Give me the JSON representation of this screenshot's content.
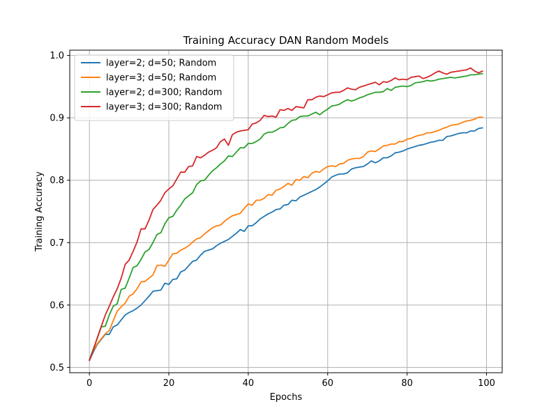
{
  "chart_data": {
    "type": "line",
    "title": "Training Accuracy DAN Random Models",
    "xlabel": "Epochs",
    "ylabel": "Training Accuracy",
    "xlim": [
      -4.95,
      103.95
    ],
    "ylim": [
      0.4915,
      1.0085
    ],
    "xticks": [
      0,
      20,
      40,
      60,
      80,
      100
    ],
    "xtick_labels": [
      "0",
      "20",
      "40",
      "60",
      "80",
      "100"
    ],
    "yticks": [
      0.5,
      0.6,
      0.7,
      0.8,
      0.9,
      1.0
    ],
    "ytick_labels": [
      "0.5",
      "0.6",
      "0.7",
      "0.8",
      "0.9",
      "1.0"
    ],
    "grid": true,
    "legend_position": "top-left",
    "x_start": 0,
    "x_step": 1,
    "series": [
      {
        "name": "layer=2; d=50; Random",
        "color": "#1f77b4",
        "values": [
          0.511,
          0.525,
          0.537,
          0.545,
          0.553,
          0.553,
          0.565,
          0.568,
          0.576,
          0.584,
          0.588,
          0.591,
          0.595,
          0.6,
          0.607,
          0.614,
          0.622,
          0.623,
          0.624,
          0.635,
          0.633,
          0.641,
          0.642,
          0.653,
          0.656,
          0.663,
          0.67,
          0.672,
          0.68,
          0.686,
          0.688,
          0.69,
          0.695,
          0.699,
          0.702,
          0.705,
          0.71,
          0.715,
          0.721,
          0.718,
          0.727,
          0.727,
          0.732,
          0.738,
          0.742,
          0.746,
          0.749,
          0.753,
          0.754,
          0.76,
          0.761,
          0.768,
          0.767,
          0.773,
          0.776,
          0.779,
          0.782,
          0.785,
          0.789,
          0.794,
          0.799,
          0.805,
          0.808,
          0.81,
          0.81,
          0.812,
          0.818,
          0.82,
          0.821,
          0.822,
          0.826,
          0.831,
          0.828,
          0.831,
          0.836,
          0.836,
          0.839,
          0.844,
          0.845,
          0.847,
          0.85,
          0.852,
          0.854,
          0.856,
          0.857,
          0.859,
          0.861,
          0.862,
          0.864,
          0.864,
          0.87,
          0.871,
          0.873,
          0.875,
          0.876,
          0.876,
          0.879,
          0.879,
          0.883,
          0.884
        ]
      },
      {
        "name": "layer=3; d=50; Random",
        "color": "#ff7f0e",
        "values": [
          0.513,
          0.527,
          0.538,
          0.546,
          0.554,
          0.559,
          0.575,
          0.59,
          0.597,
          0.603,
          0.614,
          0.618,
          0.626,
          0.637,
          0.638,
          0.643,
          0.648,
          0.663,
          0.664,
          0.662,
          0.672,
          0.682,
          0.683,
          0.688,
          0.691,
          0.695,
          0.701,
          0.706,
          0.708,
          0.714,
          0.719,
          0.724,
          0.727,
          0.728,
          0.734,
          0.739,
          0.743,
          0.745,
          0.747,
          0.755,
          0.762,
          0.76,
          0.768,
          0.768,
          0.771,
          0.777,
          0.776,
          0.784,
          0.786,
          0.79,
          0.795,
          0.792,
          0.801,
          0.8,
          0.806,
          0.804,
          0.811,
          0.814,
          0.813,
          0.818,
          0.822,
          0.823,
          0.822,
          0.826,
          0.827,
          0.832,
          0.834,
          0.835,
          0.835,
          0.838,
          0.845,
          0.847,
          0.846,
          0.85,
          0.855,
          0.856,
          0.858,
          0.858,
          0.862,
          0.862,
          0.866,
          0.867,
          0.87,
          0.872,
          0.873,
          0.876,
          0.876,
          0.878,
          0.88,
          0.883,
          0.885,
          0.888,
          0.889,
          0.89,
          0.893,
          0.895,
          0.896,
          0.898,
          0.901,
          0.901
        ]
      },
      {
        "name": "layer=2; d=300; Random",
        "color": "#2ca02c",
        "values": [
          0.512,
          0.53,
          0.547,
          0.565,
          0.566,
          0.584,
          0.598,
          0.602,
          0.625,
          0.627,
          0.643,
          0.66,
          0.663,
          0.673,
          0.685,
          0.689,
          0.7,
          0.713,
          0.716,
          0.73,
          0.74,
          0.742,
          0.752,
          0.76,
          0.77,
          0.775,
          0.78,
          0.793,
          0.799,
          0.8,
          0.808,
          0.815,
          0.82,
          0.826,
          0.831,
          0.839,
          0.838,
          0.845,
          0.852,
          0.852,
          0.859,
          0.859,
          0.862,
          0.866,
          0.874,
          0.877,
          0.877,
          0.88,
          0.884,
          0.885,
          0.891,
          0.896,
          0.897,
          0.902,
          0.903,
          0.903,
          0.906,
          0.909,
          0.905,
          0.91,
          0.914,
          0.919,
          0.92,
          0.922,
          0.926,
          0.929,
          0.927,
          0.929,
          0.932,
          0.934,
          0.937,
          0.939,
          0.941,
          0.941,
          0.942,
          0.947,
          0.944,
          0.949,
          0.95,
          0.951,
          0.95,
          0.952,
          0.956,
          0.957,
          0.958,
          0.96,
          0.959,
          0.96,
          0.962,
          0.963,
          0.964,
          0.965,
          0.964,
          0.965,
          0.966,
          0.967,
          0.969,
          0.969,
          0.97,
          0.971
        ]
      },
      {
        "name": "layer=3; d=300; Random",
        "color": "#d62728",
        "values": [
          0.511,
          0.528,
          0.548,
          0.566,
          0.584,
          0.598,
          0.613,
          0.626,
          0.643,
          0.665,
          0.672,
          0.686,
          0.701,
          0.722,
          0.722,
          0.736,
          0.753,
          0.76,
          0.768,
          0.78,
          0.786,
          0.791,
          0.802,
          0.813,
          0.813,
          0.822,
          0.823,
          0.838,
          0.836,
          0.84,
          0.845,
          0.848,
          0.852,
          0.862,
          0.866,
          0.856,
          0.873,
          0.877,
          0.879,
          0.88,
          0.881,
          0.89,
          0.892,
          0.896,
          0.904,
          0.902,
          0.903,
          0.901,
          0.913,
          0.912,
          0.915,
          0.912,
          0.918,
          0.917,
          0.916,
          0.929,
          0.929,
          0.933,
          0.935,
          0.934,
          0.937,
          0.94,
          0.941,
          0.941,
          0.944,
          0.948,
          0.946,
          0.945,
          0.949,
          0.951,
          0.953,
          0.955,
          0.957,
          0.953,
          0.958,
          0.957,
          0.96,
          0.964,
          0.961,
          0.962,
          0.961,
          0.965,
          0.966,
          0.967,
          0.963,
          0.965,
          0.968,
          0.972,
          0.975,
          0.972,
          0.97,
          0.973,
          0.974,
          0.975,
          0.976,
          0.977,
          0.98,
          0.975,
          0.972,
          0.975
        ]
      }
    ]
  }
}
